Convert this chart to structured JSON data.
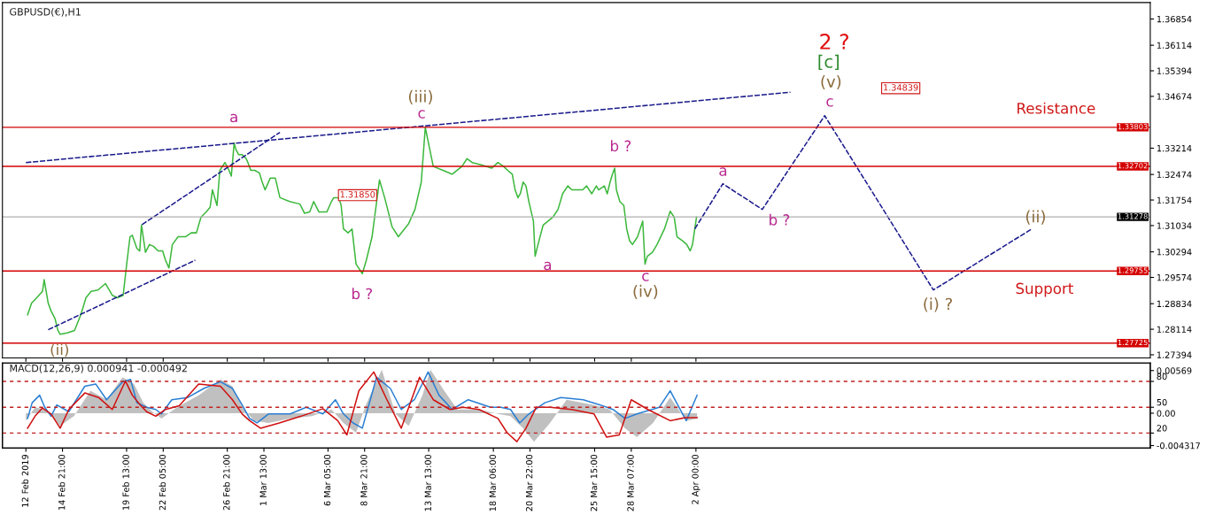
{
  "chart_data": [
    {
      "type": "line",
      "title": "GBPUSD(€),H1",
      "tick_labels": "y",
      "xlim": [
        "2019-02-10T12:00",
        "2019-05-05T02:00"
      ],
      "ylim": [
        1.27306,
        1.37316
      ],
      "xticks": [
        {
          "value": "2019-02-12T05:00",
          "label": null
        },
        {
          "value": "2019-02-14T21:00",
          "label": null
        },
        {
          "value": "2019-02-19T13:00",
          "label": null
        },
        {
          "value": "2019-02-22T05:00",
          "label": null
        },
        {
          "value": "2019-02-26T21:00",
          "label": null
        },
        {
          "value": "2019-03-01T13:00",
          "label": null
        },
        {
          "value": "2019-03-06T05:00",
          "label": null
        },
        {
          "value": "2019-03-08T21:00",
          "label": null
        },
        {
          "value": "2019-03-13T13:00",
          "label": null
        },
        {
          "value": "2019-03-18T06:00",
          "label": null
        },
        {
          "value": "2019-03-20T22:00",
          "label": null
        },
        {
          "value": "2019-03-25T15:00",
          "label": null
        },
        {
          "value": "2019-03-28T07:00",
          "label": null
        },
        {
          "value": "2019-04-02T00:00",
          "label": null
        }
      ],
      "yticks": [
        1.27394,
        1.28114,
        1.28834,
        1.29574,
        1.30294,
        1.31034,
        1.31754,
        1.32474,
        1.33214,
        1.34674,
        1.35394,
        1.36114,
        1.36854
      ],
      "series": [
        {
          "color": "#3cb83c",
          "line_style": "solid",
          "x": [
            "2019-02-12T08:00",
            "2019-02-12T15:00",
            "2019-02-13T00:00",
            "2019-02-13T10:00",
            "2019-02-13T13:00",
            "2019-02-13T20:00",
            "2019-02-14T01:00",
            "2019-02-14T08:00",
            "2019-02-14T13:00",
            "2019-02-14T17:00",
            "2019-02-15T05:00",
            "2019-02-15T18:00",
            "2019-02-16T05:00",
            "2019-02-16T14:00",
            "2019-02-16T23:00",
            "2019-02-17T11:00",
            "2019-02-18T00:00",
            "2019-02-18T12:00",
            "2019-02-18T21:00",
            "2019-02-19T07:00",
            "2019-02-19T14:00",
            "2019-02-19T19:00",
            "2019-02-19T23:00",
            "2019-02-20T07:00",
            "2019-02-20T12:00",
            "2019-02-20T15:00",
            "2019-02-20T22:00",
            "2019-02-21T05:00",
            "2019-02-21T12:00",
            "2019-02-21T20:00",
            "2019-02-22T04:00",
            "2019-02-22T09:00",
            "2019-02-22T15:00",
            "2019-02-22T21:00",
            "2019-02-23T07:00",
            "2019-02-23T20:00",
            "2019-02-24T06:00",
            "2019-02-24T15:00",
            "2019-02-24T23:00",
            "2019-02-25T08:00",
            "2019-02-25T15:00",
            "2019-02-25T19:00",
            "2019-02-26T03:00",
            "2019-02-26T08:00",
            "2019-02-26T17:00",
            "2019-02-27T00:00",
            "2019-02-27T04:00",
            "2019-02-27T09:00",
            "2019-02-27T12:00",
            "2019-02-27T17:00",
            "2019-02-27T23:00",
            "2019-02-28T06:00",
            "2019-02-28T09:00",
            "2019-02-28T14:00",
            "2019-02-28T21:00",
            "2019-03-01T05:00",
            "2019-03-01T10:00",
            "2019-03-01T15:00",
            "2019-03-02T00:00",
            "2019-03-02T09:00",
            "2019-03-02T17:00",
            "2019-03-03T10:00",
            "2019-03-04T04:00",
            "2019-03-04T12:00",
            "2019-03-04T21:00",
            "2019-03-05T04:00",
            "2019-03-05T13:00",
            "2019-03-06T03:00",
            "2019-03-06T11:00",
            "2019-03-06T15:00",
            "2019-03-07T00:00",
            "2019-03-07T04:00",
            "2019-03-07T08:00",
            "2019-03-07T16:00",
            "2019-03-07T23:00",
            "2019-03-08T06:00",
            "2019-03-08T17:00",
            "2019-03-09T00:00",
            "2019-03-09T10:00",
            "2019-03-09T23:00",
            "2019-03-10T08:00",
            "2019-03-10T21:00",
            "2019-03-11T08:00",
            "2019-03-12T02:00",
            "2019-03-12T13:00",
            "2019-03-13T00:00",
            "2019-03-13T07:00",
            "2019-03-13T14:00",
            "2019-03-13T21:00",
            "2019-03-14T14:00",
            "2019-03-15T06:00",
            "2019-03-15T23:00",
            "2019-03-16T08:00",
            "2019-03-16T17:00",
            "2019-03-17T10:00",
            "2019-03-18T03:00",
            "2019-03-18T14:00",
            "2019-03-19T00:00",
            "2019-03-19T07:00",
            "2019-03-19T15:00",
            "2019-03-19T20:00",
            "2019-03-20T01:00",
            "2019-03-20T05:00",
            "2019-03-20T10:00",
            "2019-03-20T15:00",
            "2019-03-20T20:00",
            "2019-03-21T04:00",
            "2019-03-21T07:00",
            "2019-03-21T12:00",
            "2019-03-21T21:00",
            "2019-03-22T14:00",
            "2019-03-22T23:00",
            "2019-03-23T07:00",
            "2019-03-23T16:00",
            "2019-03-23T23:00",
            "2019-03-24T18:00",
            "2019-03-25T01:00",
            "2019-03-25T10:00",
            "2019-03-25T18:00",
            "2019-03-25T22:00",
            "2019-03-26T08:00",
            "2019-03-26T13:00",
            "2019-03-26T18:00",
            "2019-03-26T22:00",
            "2019-03-27T02:00",
            "2019-03-27T05:00",
            "2019-03-27T11:00",
            "2019-03-27T18:00",
            "2019-03-27T23:00",
            "2019-03-28T04:00",
            "2019-03-28T09:00",
            "2019-03-28T18:00",
            "2019-03-29T03:00",
            "2019-03-29T07:00",
            "2019-03-29T11:00",
            "2019-03-29T20:00",
            "2019-03-30T04:00",
            "2019-03-30T17:00",
            "2019-03-31T03:00",
            "2019-03-31T10:00",
            "2019-03-31T15:00",
            "2019-04-01T00:00",
            "2019-04-01T08:00",
            "2019-04-01T14:00",
            "2019-04-01T18:00",
            "2019-04-01T22:00",
            "2019-04-02T01:00"
          ],
          "values": [
            1.2852,
            1.2885,
            1.29,
            1.2918,
            1.2951,
            1.2885,
            1.2863,
            1.2841,
            1.2808,
            1.2797,
            1.2801,
            1.2808,
            1.2852,
            1.29,
            1.2918,
            1.2922,
            1.294,
            1.2907,
            1.29,
            1.2907,
            1.3006,
            1.3072,
            1.3076,
            1.3039,
            1.3032,
            1.3105,
            1.3028,
            1.305,
            1.3045,
            1.3032,
            1.3032,
            1.3006,
            1.2984,
            1.305,
            1.3072,
            1.3072,
            1.3083,
            1.3083,
            1.3127,
            1.3142,
            1.3155,
            1.3204,
            1.316,
            1.3259,
            1.3281,
            1.3259,
            1.3243,
            1.3336,
            1.3318,
            1.3303,
            1.3303,
            1.3292,
            1.3281,
            1.3259,
            1.3259,
            1.3252,
            1.3226,
            1.3204,
            1.3237,
            1.3237,
            1.3182,
            1.3171,
            1.3164,
            1.3138,
            1.3142,
            1.3171,
            1.3142,
            1.3142,
            1.3171,
            1.3182,
            1.3182,
            1.316,
            1.3094,
            1.3083,
            1.3094,
            1.2995,
            1.2968,
            1.3006,
            1.3072,
            1.3232,
            1.3182,
            1.31,
            1.3072,
            1.3109,
            1.3149,
            1.3226,
            1.338,
            1.3325,
            1.327,
            1.3259,
            1.3248,
            1.327,
            1.3292,
            1.3281,
            1.3274,
            1.3265,
            1.3281,
            1.327,
            1.3259,
            1.3248,
            1.3204,
            1.3182,
            1.3193,
            1.3226,
            1.3215,
            1.3171,
            1.3116,
            1.3017,
            1.305,
            1.3105,
            1.3127,
            1.3149,
            1.3193,
            1.3215,
            1.3204,
            1.3204,
            1.3215,
            1.3193,
            1.3215,
            1.3204,
            1.3215,
            1.3193,
            1.3226,
            1.3248,
            1.3265,
            1.3204,
            1.3171,
            1.316,
            1.3094,
            1.3061,
            1.305,
            1.3072,
            1.3116,
            1.2995,
            1.3017,
            1.3028,
            1.305,
            1.3094,
            1.3144,
            1.3127,
            1.3072,
            1.3061,
            1.305,
            1.3032,
            1.305,
            1.3094,
            1.3127
          ]
        },
        {
          "color": "#1a1a8c",
          "line_style": "dashed",
          "x": [
            "2019-04-01T22:00",
            "2019-04-03T23:00",
            "2019-04-06T20:00",
            "2019-04-11T09:00",
            "2019-04-19T07:00",
            "2019-04-26T11:00"
          ],
          "values": [
            1.3094,
            1.3221,
            1.3149,
            1.3413,
            1.2922,
            1.3094
          ]
        },
        {
          "color": "#1a1a8c",
          "line_style": "dashed",
          "x": [
            "2019-02-12T05:00",
            "2019-04-08T21:00"
          ],
          "values": [
            1.3281,
            1.3479
          ]
        },
        {
          "color": "#1a1a8c",
          "line_style": "dashed",
          "x": [
            "2019-02-13T20:00",
            "2019-02-24T13:00"
          ],
          "values": [
            1.281,
            1.3006
          ]
        },
        {
          "color": "#1a1a8c",
          "line_style": "dashed",
          "x": [
            "2019-02-20T16:00",
            "2019-03-02T17:00"
          ],
          "values": [
            1.3106,
            1.3366
          ]
        }
      ],
      "ref_lines": [
        {
          "axis": "y",
          "value": 1.33803,
          "label": "1.33803",
          "color": "#d40000",
          "line_style": "solid"
        },
        {
          "axis": "y",
          "value": 1.32702,
          "label": "1.32702",
          "color": "#d40000",
          "line_style": "solid"
        },
        {
          "axis": "y",
          "value": 1.31278,
          "label": "1.31278",
          "color": "#b0b0b0",
          "line_style": "solid"
        },
        {
          "axis": "y",
          "value": 1.29755,
          "label": "1.29755",
          "color": "#d40000",
          "line_style": "solid"
        },
        {
          "axis": "y",
          "value": 1.27725,
          "label": "1.27725",
          "color": "#d40000",
          "line_style": "solid"
        }
      ],
      "annotations": [
        "a",
        "(ii)",
        "b ?",
        "(iii)",
        "c",
        "b ?",
        "a",
        "c",
        "(iv)",
        "a",
        "b ?",
        "2 ?",
        "[c]",
        "(v)",
        "c",
        "(ii)",
        "(i) ?",
        "Resistance",
        "Support",
        "1.31850",
        "1.34839"
      ]
    },
    {
      "type": "line",
      "title": "MACD(12,26,9) 0.000941 -0.000492",
      "xlim": [
        "2019-02-10T12:00",
        "2019-05-05T02:00"
      ],
      "ylim": [
        -0.00465,
        0.00669
      ],
      "y2lim": [
        2.6,
        101.3
      ],
      "xticks": [
        {
          "value": "2019-02-12T05:00",
          "label": "12 Feb 2019"
        },
        {
          "value": "2019-02-14T21:00",
          "label": "14 Feb 21:00"
        },
        {
          "value": "2019-02-19T13:00",
          "label": "19 Feb 13:00"
        },
        {
          "value": "2019-02-22T05:00",
          "label": "22 Feb 05:00"
        },
        {
          "value": "2019-02-26T21:00",
          "label": "26 Feb 21:00"
        },
        {
          "value": "2019-03-01T13:00",
          "label": "1 Mar 13:00"
        },
        {
          "value": "2019-03-06T05:00",
          "label": "6 Mar 05:00"
        },
        {
          "value": "2019-03-08T21:00",
          "label": "8 Mar 21:00"
        },
        {
          "value": "2019-03-13T13:00",
          "label": "13 Mar 13:00"
        },
        {
          "value": "2019-03-18T06:00",
          "label": "18 Mar 06:00"
        },
        {
          "value": "2019-03-20T22:00",
          "label": "20 Mar 22:00"
        },
        {
          "value": "2019-03-25T15:00",
          "label": "25 Mar 15:00"
        },
        {
          "value": "2019-03-28T07:00",
          "label": "28 Mar 07:00"
        },
        {
          "value": "2019-04-02T00:00",
          "label": "2 Apr 00:00"
        }
      ],
      "yticks": [
        -0.004317,
        {
          "value": 0,
          "label": "0.00"
        },
        0.00569
      ],
      "y2ticks": [
        20,
        50,
        80
      ],
      "series": [
        {
          "type": "area",
          "color": "#c0c0c0",
          "x": [
            "2019-02-12T05:00",
            "2019-02-12T21:00",
            "2019-02-13T14:00",
            "2019-02-14T06:00",
            "2019-02-14T17:00",
            "2019-02-15T17:00",
            "2019-02-16T22:00",
            "2019-02-18T02:00",
            "2019-02-19T06:00",
            "2019-02-20T02:00",
            "2019-02-20T18:00",
            "2019-02-21T10:00",
            "2019-02-22T02:00",
            "2019-02-23T05:00",
            "2019-02-24T19:00",
            "2019-02-26T09:00",
            "2019-02-27T06:00",
            "2019-02-27T23:00",
            "2019-02-28T20:00",
            "2019-03-01T21:00",
            "2019-03-03T11:00",
            "2019-03-05T01:00",
            "2019-03-06T11:00",
            "2019-03-07T08:00",
            "2019-03-08T06:00",
            "2019-03-08T23:00",
            "2019-03-10T03:00",
            "2019-03-11T03:00",
            "2019-03-12T02:00",
            "2019-03-13T02:00",
            "2019-03-13T16:00",
            "2019-03-14T16:00",
            "2019-03-15T15:00",
            "2019-03-17T05:00",
            "2019-03-18T14:00",
            "2019-03-19T12:00",
            "2019-03-20T10:00",
            "2019-03-21T05:00",
            "2019-03-22T09:00",
            "2019-03-23T14:00",
            "2019-03-25T14:00",
            "2019-03-26T17:00",
            "2019-03-27T20:00",
            "2019-03-28T17:00",
            "2019-03-29T21:00",
            "2019-03-31T03:00",
            "2019-04-01T07:00",
            "2019-04-02T02:00"
          ],
          "values": [
            -0.001,
            0.0008,
            0.0005,
            -0.0007,
            -0.0017,
            -0.0004,
            0.003,
            0.0018,
            0.0048,
            0.0039,
            0.0014,
            0.0002,
            -0.0007,
            0.0008,
            0.0024,
            0.0045,
            0.0036,
            0.0008,
            -0.001,
            -0.0013,
            -0.0007,
            -0.0004,
            0.0005,
            -0.0013,
            -0.0026,
            0.0011,
            0.0058,
            -0.0001,
            -0.0017,
            0.0024,
            0.0058,
            0.003,
            0.0005,
            0.0005,
            -0.0001,
            -0.0004,
            -0.002,
            -0.0038,
            -0.0013,
            0.0018,
            0.0011,
            0.0005,
            -0.002,
            -0.0032,
            -0.0013,
            0.0021,
            -0.001,
            -0.0007
          ]
        },
        {
          "color": "#2a7fd4",
          "line_style": "solid",
          "x": [
            "2019-02-12T08:00",
            "2019-02-12T16:00",
            "2019-02-13T05:00",
            "2019-02-13T14:00",
            "2019-02-14T01:00",
            "2019-02-14T11:00",
            "2019-02-15T08:00",
            "2019-02-16T12:00",
            "2019-02-17T07:00",
            "2019-02-18T02:00",
            "2019-02-19T06:00",
            "2019-02-19T20:00",
            "2019-02-20T07:00",
            "2019-02-21T00:00",
            "2019-02-21T16:00",
            "2019-02-22T02:00",
            "2019-02-22T20:00",
            "2019-02-24T00:00",
            "2019-02-25T04:00",
            "2019-02-26T09:00",
            "2019-02-27T06:00",
            "2019-02-27T23:00",
            "2019-02-28T12:00",
            "2019-03-01T01:00",
            "2019-03-01T21:00",
            "2019-03-03T11:00",
            "2019-03-04T15:00",
            "2019-03-05T20:00",
            "2019-03-06T18:00",
            "2019-03-07T08:00",
            "2019-03-08T01:00",
            "2019-03-08T17:00",
            "2019-03-09T18:00",
            "2019-03-10T18:00",
            "2019-03-11T13:00",
            "2019-03-12T12:00",
            "2019-03-13T12:00",
            "2019-03-14T07:00",
            "2019-03-15T06:00",
            "2019-03-16T10:00",
            "2019-03-18T01:00",
            "2019-03-18T19:00",
            "2019-03-19T12:00",
            "2019-03-20T04:00",
            "2019-03-20T20:00",
            "2019-03-22T00:00",
            "2019-03-23T04:00",
            "2019-03-24T19:00",
            "2019-03-26T01:00",
            "2019-03-26T23:00",
            "2019-03-27T20:00",
            "2019-03-28T17:00",
            "2019-03-30T08:00",
            "2019-03-31T03:00",
            "2019-04-01T07:00",
            "2019-04-02T02:00"
          ],
          "values": [
            -0.0007,
            0.0014,
            0.0024,
            0.0008,
            -0.0004,
            0.0011,
            0.0002,
            0.0036,
            0.0039,
            0.0018,
            0.0042,
            0.0045,
            0.0014,
            0.0008,
            0.0005,
            -0.0001,
            0.0018,
            0.0021,
            0.0033,
            0.0042,
            0.0033,
            0.0011,
            -0.0007,
            -0.0013,
            -0.0001,
            -0.0001,
            0.0008,
            -0.0001,
            0.0018,
            -0.0001,
            -0.0013,
            -0.002,
            0.0048,
            0.0033,
            0.0005,
            0.0018,
            0.0055,
            0.0024,
            0.0005,
            0.0018,
            0.0008,
            0.0008,
            0.0005,
            -0.0013,
            -0.0001,
            0.0014,
            0.0021,
            0.0018,
            0.0011,
            0.0005,
            -0.0007,
            -0.0001,
            0.0008,
            0.003,
            -0.001,
            0.0024
          ]
        },
        {
          "color": "#d01010",
          "line_style": "solid",
          "x": [
            "2019-02-12T08:00",
            "2019-02-12T21:00",
            "2019-02-13T10:00",
            "2019-02-14T01:00",
            "2019-02-14T17:00",
            "2019-02-15T08:00",
            "2019-02-16T12:00",
            "2019-02-17T12:00",
            "2019-02-18T12:00",
            "2019-02-19T11:00",
            "2019-02-19T23:00",
            "2019-02-20T13:00",
            "2019-02-21T00:00",
            "2019-02-21T16:00",
            "2019-02-22T09:00",
            "2019-02-23T09:00",
            "2019-02-24T19:00",
            "2019-02-26T09:00",
            "2019-02-27T06:00",
            "2019-02-27T23:00",
            "2019-02-28T12:00",
            "2019-03-01T07:00",
            "2019-03-02T16:00",
            "2019-03-04T06:00",
            "2019-03-05T20:00",
            "2019-03-06T22:00",
            "2019-03-07T14:00",
            "2019-03-08T11:00",
            "2019-03-09T13:00",
            "2019-03-10T12:00",
            "2019-03-11T13:00",
            "2019-03-11T22:00",
            "2019-03-12T21:00",
            "2019-03-13T21:00",
            "2019-03-15T02:00",
            "2019-03-16T01:00",
            "2019-03-17T05:00",
            "2019-03-18T14:00",
            "2019-03-19T06:00",
            "2019-03-19T23:00",
            "2019-03-20T15:00",
            "2019-03-21T09:00",
            "2019-03-22T09:00",
            "2019-03-23T23:00",
            "2019-03-25T14:00",
            "2019-03-26T12:00",
            "2019-03-27T10:00",
            "2019-03-28T07:00",
            "2019-03-29T12:00",
            "2019-03-31T03:00",
            "2019-04-01T05:00",
            "2019-04-01T14:00",
            "2019-04-02T02:00"
          ],
          "values": [
            -0.002,
            -0.0004,
            0.0007,
            -0.0001,
            -0.002,
            0.0005,
            0.0027,
            0.0021,
            0.0005,
            0.0043,
            0.0024,
            0.0011,
            0.0002,
            -0.0004,
            0.0005,
            0.001,
            0.0039,
            0.0036,
            0.0018,
            -0.0001,
            -0.001,
            -0.002,
            -0.0013,
            -0.0004,
            0.0006,
            -0.001,
            -0.0029,
            0.003,
            0.0055,
            0.0018,
            -0.002,
            -0.0001,
            0.0048,
            0.0018,
            0.0005,
            0.0008,
            0.0005,
            -0.0007,
            -0.0026,
            -0.0038,
            -0.002,
            0.0008,
            0.0008,
            0.0005,
            -0.0001,
            -0.0032,
            -0.0029,
            0.0018,
            0.0005,
            -0.001,
            -0.0006,
            -0.0006,
            -0.0006
          ]
        }
      ],
      "ref_lines": [
        {
          "axis": "y2",
          "value": 80,
          "color": "#c02020",
          "line_style": "dashed"
        },
        {
          "axis": "y2",
          "value": 50,
          "color": "#c02020",
          "line_style": "dashed"
        },
        {
          "axis": "y2",
          "value": 20,
          "color": "#c02020",
          "line_style": "dashed"
        }
      ]
    }
  ]
}
